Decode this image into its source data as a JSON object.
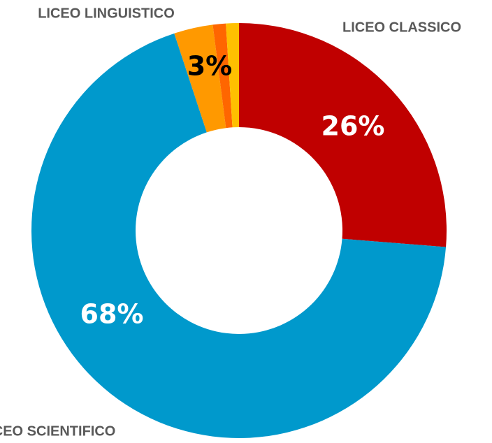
{
  "chart_data": {
    "type": "donut",
    "categories": [
      "LICEO CLASSICO",
      "LICEO SCIENTIFICO",
      "LICEO LINGUISTICO",
      null,
      null
    ],
    "values": [
      26,
      68,
      3,
      1,
      1
    ],
    "value_labels": [
      "26%",
      "68%",
      "3%",
      null,
      null
    ],
    "colors": [
      "#c00000",
      "#0099cc",
      "#ff9900",
      "#ff6600",
      "#ffc000"
    ]
  }
}
